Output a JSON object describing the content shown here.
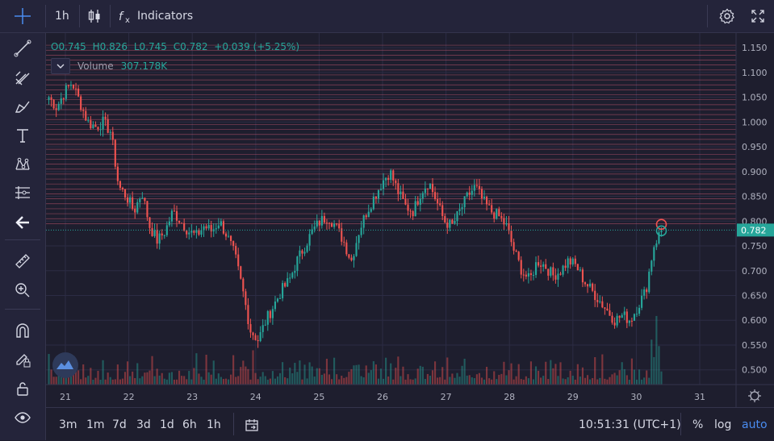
{
  "toolbar": {
    "interval": "1h",
    "indicators_label": "Indicators"
  },
  "left_tools": [
    "crosshair-icon",
    "trend-line-icon",
    "pitchfork-icon",
    "brush-icon",
    "text-icon",
    "pattern-icon",
    "fib-retracement-icon",
    "back-arrow-icon",
    "ruler-icon",
    "zoom-in-icon",
    "magnet-icon",
    "lock-drawing-icon",
    "lock-icon",
    "eye-icon"
  ],
  "legend": {
    "o": "O0.745",
    "h": "H0.826",
    "l": "L0.745",
    "c": "C0.782",
    "change": "+0.039 (+5.25%)",
    "volume_label": "Volume",
    "volume_value": "307.178K"
  },
  "colors": {
    "up": "#26a69a",
    "down": "#ef5350",
    "grid": "#2c2c44",
    "hline": "#e0607a",
    "price_label_bg": "#26a69a"
  },
  "price_axis": [
    "1.150",
    "1.100",
    "1.050",
    "1.000",
    "0.950",
    "0.900",
    "0.850",
    "0.800",
    "0.750",
    "0.700",
    "0.650",
    "0.600",
    "0.550",
    "0.500"
  ],
  "current_price": "0.782",
  "time_axis": [
    "21",
    "22",
    "23",
    "24",
    "25",
    "26",
    "27",
    "28",
    "29",
    "30",
    "31"
  ],
  "bottom": {
    "ranges": [
      "3m",
      "1m",
      "7d",
      "3d",
      "1d",
      "6h",
      "1h"
    ],
    "clock": "10:51:31 (UTC+1)",
    "percent": "%",
    "log": "log",
    "auto": "auto"
  },
  "chart_data": {
    "type": "candlestick",
    "ylim": [
      0.48,
      1.16
    ],
    "x_start_label": "21",
    "x_end_label": "31",
    "horizontal_levels": [
      1.155,
      1.145,
      1.135,
      1.125,
      1.115,
      1.105,
      1.095,
      1.085,
      1.075,
      1.065,
      1.055,
      1.045,
      1.035,
      1.025,
      1.015,
      1.005,
      0.995,
      0.985,
      0.975,
      0.965,
      0.955,
      0.945,
      0.935,
      0.925,
      0.915,
      0.905,
      0.895,
      0.885,
      0.875,
      0.865,
      0.855,
      0.845,
      0.835,
      0.825,
      0.815,
      0.805,
      0.795
    ],
    "close_path": [
      1.05,
      1.03,
      1.06,
      1.08,
      1.04,
      1.0,
      0.99,
      1.0,
      0.98,
      0.87,
      0.85,
      0.82,
      0.86,
      0.79,
      0.76,
      0.78,
      0.82,
      0.8,
      0.78,
      0.77,
      0.79,
      0.78,
      0.8,
      0.77,
      0.73,
      0.66,
      0.58,
      0.56,
      0.6,
      0.63,
      0.66,
      0.68,
      0.72,
      0.75,
      0.78,
      0.8,
      0.81,
      0.79,
      0.76,
      0.72,
      0.78,
      0.82,
      0.85,
      0.88,
      0.9,
      0.86,
      0.83,
      0.82,
      0.86,
      0.88,
      0.84,
      0.8,
      0.79,
      0.82,
      0.85,
      0.87,
      0.84,
      0.82,
      0.81,
      0.79,
      0.74,
      0.7,
      0.68,
      0.72,
      0.71,
      0.69,
      0.7,
      0.72,
      0.71,
      0.68,
      0.66,
      0.64,
      0.62,
      0.6,
      0.61,
      0.6,
      0.63,
      0.66,
      0.75,
      0.782
    ]
  }
}
